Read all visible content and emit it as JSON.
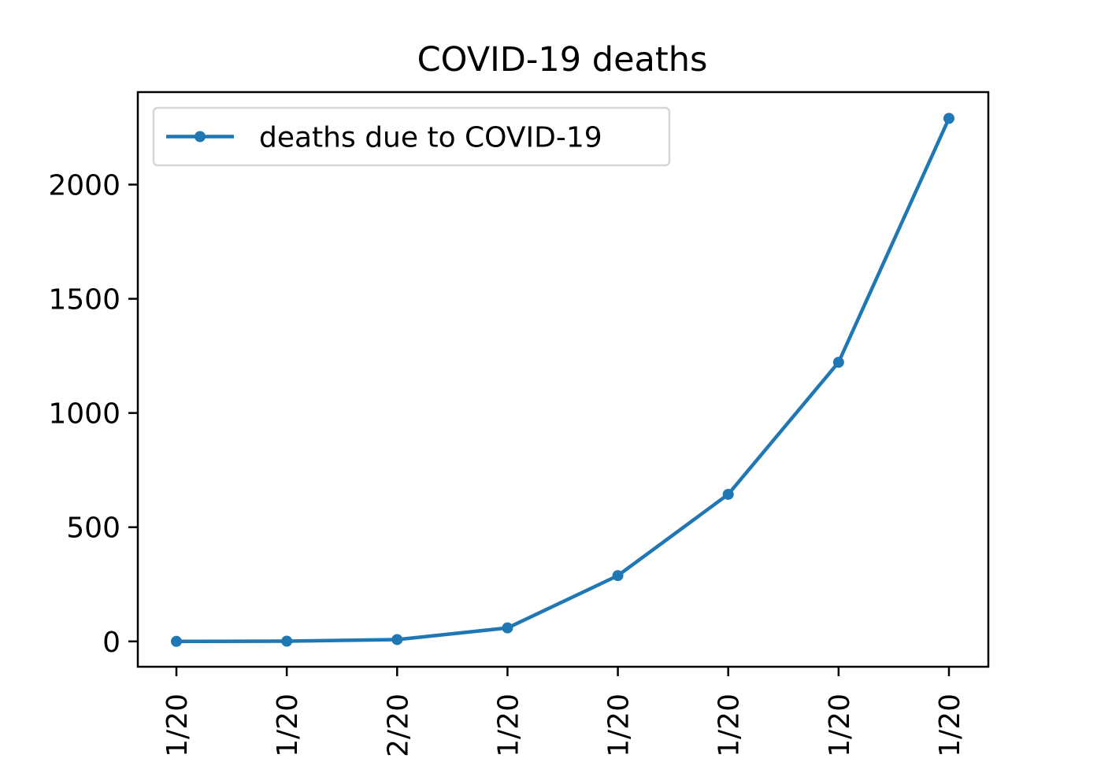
{
  "chart_data": {
    "type": "line",
    "title": "COVID-19 deaths",
    "xlabel": "",
    "ylabel": "",
    "categories": [
      "1/20",
      "1/20",
      "2/20",
      "1/20",
      "1/20",
      "1/20",
      "1/20",
      "1/20"
    ],
    "series": [
      {
        "name": "deaths due to COVID-19",
        "color": "#1f77b4",
        "marker": "circle",
        "values": [
          0,
          1,
          8,
          59,
          288,
          644,
          1222,
          2290
        ]
      }
    ],
    "ylim": [
      -111,
      2405
    ],
    "yticks": [
      0,
      500,
      1000,
      1500,
      2000
    ],
    "x_tick_rotation": 90,
    "grid": false,
    "legend_position": "upper-left",
    "x_tick_labels_clipped": true
  }
}
